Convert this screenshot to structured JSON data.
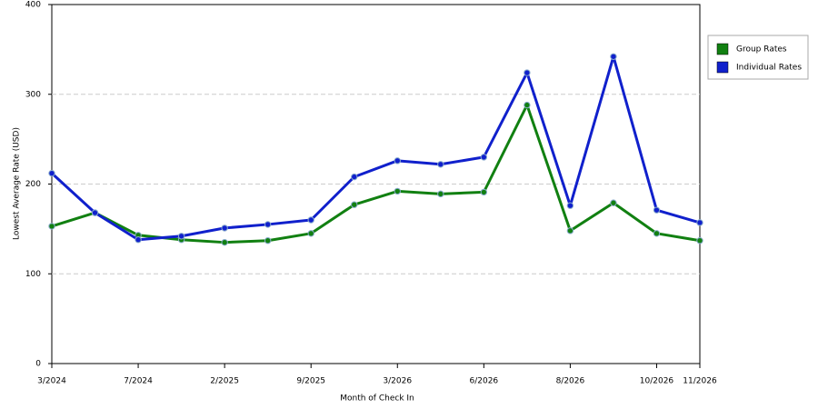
{
  "chart_data": {
    "type": "line",
    "x_label": "Month of Check In",
    "y_label": "Lowest Average Rate (USD)",
    "categories": [
      "3/2024",
      null,
      "7/2024",
      null,
      "2/2025",
      null,
      "9/2025",
      null,
      "3/2026",
      null,
      "6/2026",
      null,
      "8/2026",
      null,
      "10/2026",
      "11/2026"
    ],
    "series": [
      {
        "name": "Group Rates",
        "color": "#118011",
        "values": [
          153,
          168,
          143,
          138,
          135,
          137,
          145,
          177,
          192,
          189,
          191,
          288,
          148,
          179,
          145,
          137
        ]
      },
      {
        "name": "Individual Rates",
        "color": "#1020cc",
        "values": [
          212,
          168,
          138,
          142,
          151,
          155,
          160,
          208,
          226,
          222,
          230,
          324,
          176,
          342,
          171,
          157
        ]
      }
    ],
    "ylim": [
      0,
      400
    ],
    "yticks": [
      0,
      100,
      200,
      300,
      400
    ],
    "grid": true,
    "legend": "right"
  }
}
